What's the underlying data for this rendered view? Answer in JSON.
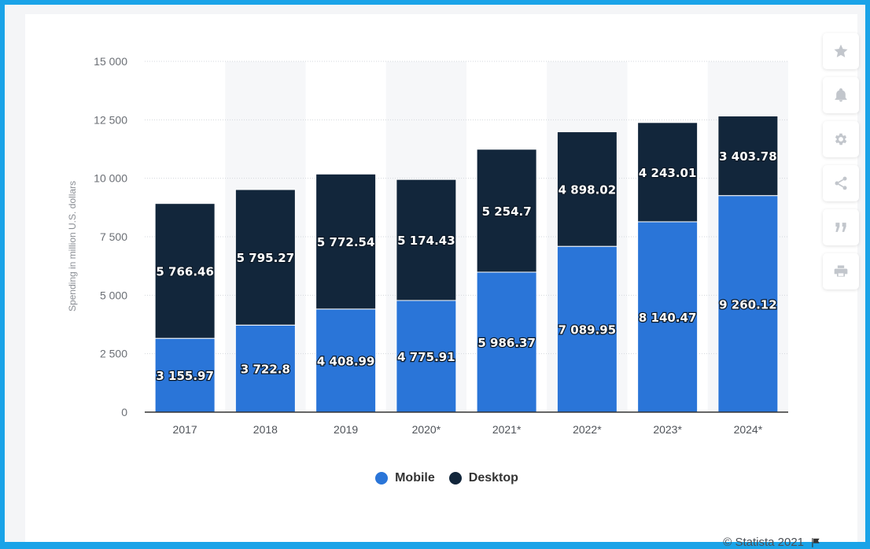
{
  "chart_data": {
    "type": "bar",
    "stacked": true,
    "categories": [
      "2017",
      "2018",
      "2019",
      "2020*",
      "2021*",
      "2022*",
      "2023*",
      "2024*"
    ],
    "series": [
      {
        "name": "Mobile",
        "color": "#2a75d8",
        "values": [
          3155.97,
          3722.8,
          4408.99,
          4775.91,
          5986.37,
          7089.95,
          8140.47,
          9260.12
        ],
        "labels": [
          "3 155.97",
          "3 722.8",
          "4 408.99",
          "4 775.91",
          "5 986.37",
          "7 089.95",
          "8 140.47",
          "9 260.12"
        ]
      },
      {
        "name": "Desktop",
        "color": "#12263b",
        "values": [
          5766.46,
          5795.27,
          5772.54,
          5174.43,
          5254.7,
          4898.02,
          4243.01,
          3403.78
        ],
        "labels": [
          "5 766.46",
          "5 795.27",
          "5 772.54",
          "5 174.43",
          "5 254.7",
          "4 898.02",
          "4 243.01",
          "3 403.78"
        ]
      }
    ],
    "ylabel": "Spending in million U.S. dollars",
    "ylim": [
      0,
      15000
    ],
    "yticks": [
      0,
      2500,
      5000,
      7500,
      10000,
      12500,
      15000
    ],
    "ytick_labels": [
      "0",
      "2 500",
      "5 000",
      "7 500",
      "10 000",
      "12 500",
      "15 000"
    ],
    "grid": true,
    "legend_position": "bottom-center"
  },
  "toolbar": {
    "icons": [
      "star-icon",
      "bell-icon",
      "gear-icon",
      "share-icon",
      "quote-icon",
      "print-icon"
    ]
  },
  "footer": {
    "credit": "© Statista 2021"
  }
}
